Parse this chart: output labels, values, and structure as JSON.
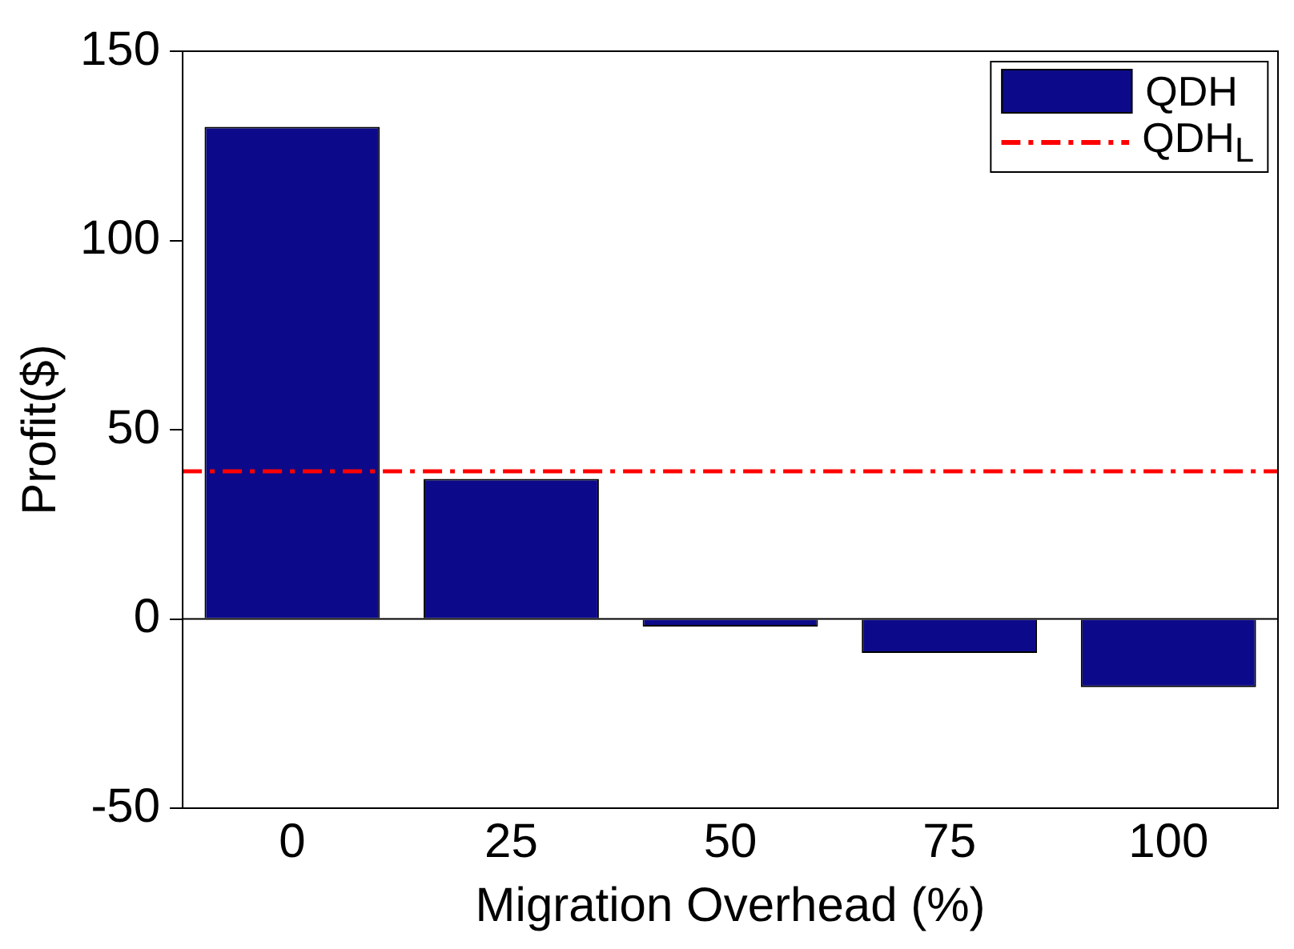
{
  "chart_data": {
    "type": "bar",
    "xlabel": "Migration Overhead (%)",
    "ylabel": "Profit($)",
    "categories": [
      "0",
      "25",
      "50",
      "75",
      "100"
    ],
    "series": [
      {
        "name": "QDH",
        "color": "#0c0a8a",
        "values": [
          130,
          37,
          -2,
          -9,
          -18
        ]
      }
    ],
    "ylim": [
      -50,
      150
    ],
    "yticks": [
      -50,
      0,
      50,
      100,
      150
    ],
    "ref_lines": [
      {
        "axis": "y",
        "value": 39,
        "label": "QDH$_{L}$",
        "color": "#ff0000",
        "line_style": "dashed"
      },
      {
        "axis": "y",
        "value": 0,
        "color": "#000000",
        "line_style": "solid"
      }
    ],
    "grid": false,
    "legend": "top right"
  }
}
